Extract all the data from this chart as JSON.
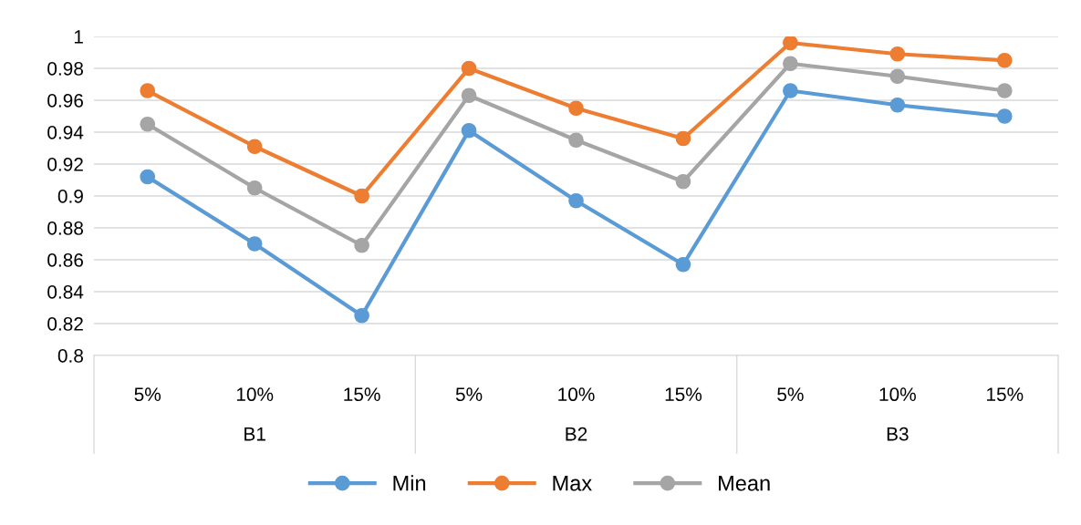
{
  "chart_data": {
    "type": "line",
    "categories": [
      "5%",
      "10%",
      "15%",
      "5%",
      "10%",
      "15%",
      "5%",
      "10%",
      "15%"
    ],
    "series": [
      {
        "name": "Min",
        "color": "#5b9bd5",
        "values": [
          0.912,
          0.87,
          0.825,
          0.941,
          0.897,
          0.857,
          0.966,
          0.957,
          0.95
        ]
      },
      {
        "name": "Max",
        "color": "#ed7d31",
        "values": [
          0.966,
          0.931,
          0.9,
          0.98,
          0.955,
          0.936,
          0.996,
          0.989,
          0.985
        ]
      },
      {
        "name": "Mean",
        "color": "#a5a5a5",
        "values": [
          0.945,
          0.905,
          0.869,
          0.963,
          0.935,
          0.909,
          0.983,
          0.975,
          0.966
        ]
      }
    ],
    "annotations": [
      "B1",
      "B2",
      "B3"
    ],
    "ylim": [
      0.8,
      1
    ],
    "yticks": [
      0.8,
      0.82,
      0.84,
      0.86,
      0.88,
      0.9,
      0.92,
      0.94,
      0.96,
      0.98,
      1
    ],
    "grid": "y",
    "legend": "bottom",
    "marker": "circle",
    "line_style": "solid"
  }
}
